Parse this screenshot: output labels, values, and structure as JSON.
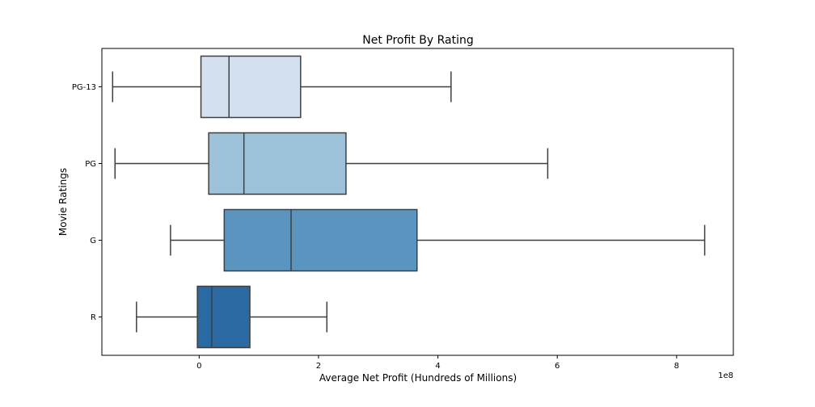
{
  "chart_data": {
    "type": "box",
    "orientation": "horizontal",
    "title": "Net Profit By Rating",
    "xlabel": "Average Net Profit (Hundreds of Millions)",
    "ylabel": "Movie Ratings",
    "x_offset_label": "1e8",
    "xlim": [
      -1.63,
      8.95
    ],
    "xticks": [
      0,
      2,
      4,
      6,
      8
    ],
    "xtick_labels": [
      "0",
      "2",
      "4",
      "6",
      "8"
    ],
    "categories": [
      "PG-13",
      "PG",
      "G",
      "R"
    ],
    "boxes": [
      {
        "category": "PG-13",
        "whisker_low": -1.45,
        "q1": 0.03,
        "median": 0.5,
        "q3": 1.7,
        "whisker_high": 4.22,
        "color": "#d3e1ef"
      },
      {
        "category": "PG",
        "whisker_low": -1.41,
        "q1": 0.16,
        "median": 0.75,
        "q3": 2.46,
        "whisker_high": 5.84,
        "color": "#9dc2d9"
      },
      {
        "category": "G",
        "whisker_low": -0.48,
        "q1": 0.42,
        "median": 1.54,
        "q3": 3.65,
        "whisker_high": 8.47,
        "color": "#5b95bf"
      },
      {
        "category": "R",
        "whisker_low": -1.05,
        "q1": -0.03,
        "median": 0.21,
        "q3": 0.85,
        "whisker_high": 2.14,
        "color": "#2b69a3"
      }
    ],
    "grid": false
  }
}
